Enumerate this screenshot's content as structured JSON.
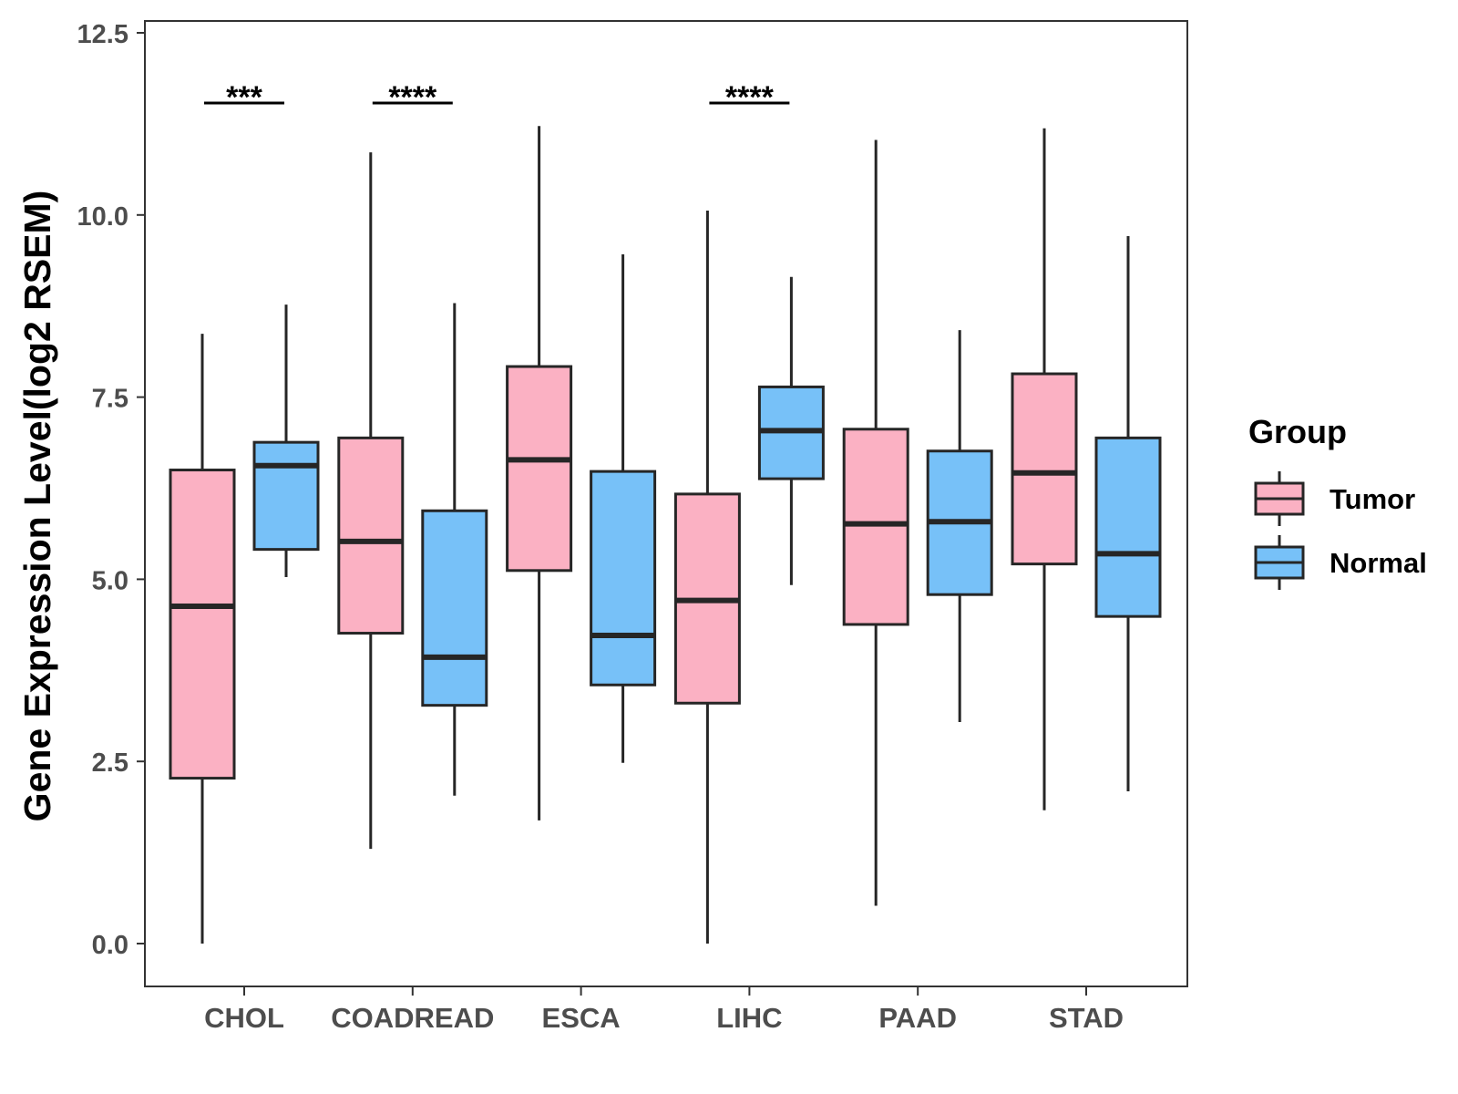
{
  "chart_data": {
    "type": "boxplot",
    "ylabel": "Gene Expression Level(log2 RSEM)",
    "xlabel": "",
    "ylim": [
      -0.6,
      12.7
    ],
    "yticks": [
      0.0,
      2.5,
      5.0,
      7.5,
      10.0,
      12.5
    ],
    "ytick_labels": [
      "0.0",
      "2.5",
      "5.0",
      "7.5",
      "10.0",
      "12.5"
    ],
    "grid": false,
    "categories": [
      "CHOL",
      "COADREAD",
      "ESCA",
      "LIHC",
      "PAAD",
      "STAD"
    ],
    "legend": {
      "title": "Group",
      "position": "right",
      "entries": [
        {
          "name": "Tumor",
          "color": "#FBB1C3"
        },
        {
          "name": "Normal",
          "color": "#77C1F8"
        }
      ]
    },
    "series": [
      {
        "name": "Tumor",
        "color": "#FBB1C3",
        "boxes": [
          {
            "category": "CHOL",
            "min": 0.0,
            "q1": 2.27,
            "median": 4.63,
            "q3": 6.5,
            "max": 8.37
          },
          {
            "category": "COADREAD",
            "min": 1.3,
            "q1": 4.26,
            "median": 5.52,
            "q3": 6.94,
            "max": 10.86
          },
          {
            "category": "ESCA",
            "min": 1.69,
            "q1": 5.12,
            "median": 6.64,
            "q3": 7.92,
            "max": 11.22
          },
          {
            "category": "LIHC",
            "min": 0.0,
            "q1": 3.3,
            "median": 4.71,
            "q3": 6.17,
            "max": 10.06
          },
          {
            "category": "PAAD",
            "min": 0.52,
            "q1": 4.38,
            "median": 5.76,
            "q3": 7.06,
            "max": 11.03
          },
          {
            "category": "STAD",
            "min": 1.83,
            "q1": 5.21,
            "median": 6.46,
            "q3": 7.82,
            "max": 11.19
          }
        ]
      },
      {
        "name": "Normal",
        "color": "#77C1F8",
        "boxes": [
          {
            "category": "CHOL",
            "min": 5.03,
            "q1": 5.41,
            "median": 6.56,
            "q3": 6.88,
            "max": 8.77
          },
          {
            "category": "COADREAD",
            "min": 2.03,
            "q1": 3.27,
            "median": 3.93,
            "q3": 5.94,
            "max": 8.79
          },
          {
            "category": "ESCA",
            "min": 2.48,
            "q1": 3.55,
            "median": 4.23,
            "q3": 6.48,
            "max": 9.46
          },
          {
            "category": "LIHC",
            "min": 4.92,
            "q1": 6.38,
            "median": 7.04,
            "q3": 7.64,
            "max": 9.15
          },
          {
            "category": "PAAD",
            "min": 3.04,
            "q1": 4.79,
            "median": 5.79,
            "q3": 6.76,
            "max": 8.42
          },
          {
            "category": "STAD",
            "min": 2.09,
            "q1": 4.49,
            "median": 5.35,
            "q3": 6.94,
            "max": 9.71
          }
        ]
      }
    ],
    "annotations": [
      {
        "category": "CHOL",
        "label": "***",
        "y": 12.0
      },
      {
        "category": "COADREAD",
        "label": "****",
        "y": 12.0
      },
      {
        "category": "LIHC",
        "label": "****",
        "y": 12.0
      }
    ]
  }
}
